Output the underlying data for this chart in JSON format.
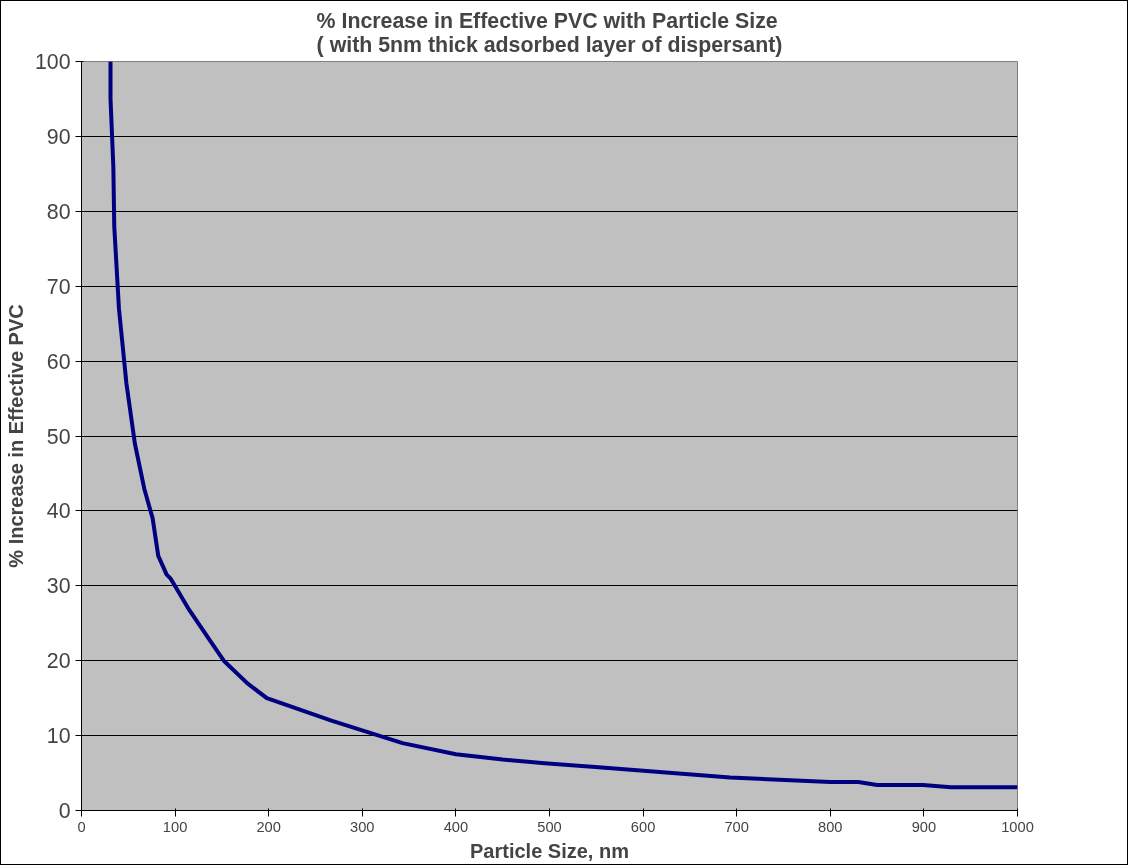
{
  "chart_data": {
    "type": "line",
    "title": "% Increase in Effective PVC with Particle Size\n( with 5nm thick adsorbed layer of dispersant)",
    "xlabel": "Particle Size, nm",
    "ylabel": "% Increase in Effective PVC",
    "x": [
      31,
      31,
      34,
      35,
      40,
      48,
      57,
      67,
      76,
      82,
      91,
      95,
      114,
      141,
      152,
      177,
      198,
      267,
      343,
      400,
      450,
      495,
      549,
      693,
      800,
      830,
      850,
      899,
      929,
      1000
    ],
    "series": [
      {
        "color": "#000080",
        "values": [
          100,
          95,
          86,
          78,
          67,
          57,
          49,
          43,
          39,
          34,
          31.5,
          31,
          27,
          22,
          20,
          17,
          15,
          12,
          9,
          7.5,
          6.8,
          6.3,
          5.8,
          4.4,
          3.8,
          3.8,
          3.4,
          3.4,
          3.1,
          3.1
        ]
      }
    ],
    "xlim": [
      0,
      1000
    ],
    "ylim": [
      0,
      100
    ],
    "xticks": [
      0,
      100,
      200,
      300,
      400,
      500,
      600,
      700,
      800,
      900,
      1000
    ],
    "yticks": [
      0,
      10,
      20,
      30,
      40,
      50,
      60,
      70,
      80,
      90,
      100
    ],
    "grid": "y",
    "marker": "none",
    "line_style": "solid"
  }
}
